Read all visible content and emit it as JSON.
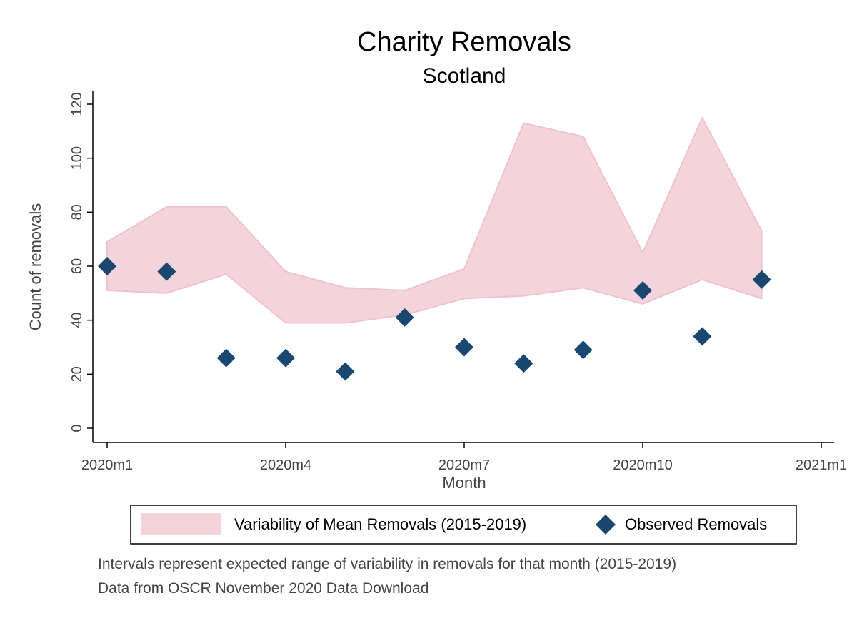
{
  "chart_data": {
    "type": "area",
    "title": "Charity Removals",
    "subtitle": "Scotland",
    "xlabel": "Month",
    "ylabel": "Count of removals",
    "x_ticks": [
      "2020m1",
      "2020m4",
      "2020m7",
      "2020m10",
      "2021m1"
    ],
    "x_tick_positions": [
      0,
      3,
      6,
      9,
      12
    ],
    "xlim": [
      0,
      12
    ],
    "y_ticks": [
      0,
      20,
      40,
      60,
      80,
      100,
      120
    ],
    "ylim": [
      0,
      120
    ],
    "months": [
      "2020m1",
      "2020m2",
      "2020m3",
      "2020m4",
      "2020m5",
      "2020m6",
      "2020m7",
      "2020m8",
      "2020m9",
      "2020m10",
      "2020m11",
      "2020m12"
    ],
    "series": [
      {
        "name": "Variability of Mean Removals (2015-2019)",
        "kind": "band",
        "color": "#f4d4dc",
        "lower": [
          51,
          50,
          57,
          39,
          39,
          42,
          48,
          49,
          52,
          46,
          55,
          48
        ],
        "upper": [
          69,
          82,
          82,
          58,
          52,
          51,
          59,
          113,
          108,
          65,
          115,
          73
        ]
      },
      {
        "name": "Observed Removals",
        "kind": "scatter",
        "marker": "diamond",
        "color": "#1a476f",
        "values": [
          60,
          58,
          26,
          26,
          21,
          41,
          30,
          24,
          29,
          51,
          34,
          55
        ]
      }
    ],
    "grid": false,
    "legend_position": "bottom"
  },
  "notes": [
    "Intervals represent expected range of variability in removals for that month (2015-2019)",
    "Data from OSCR November 2020 Data Download"
  ]
}
